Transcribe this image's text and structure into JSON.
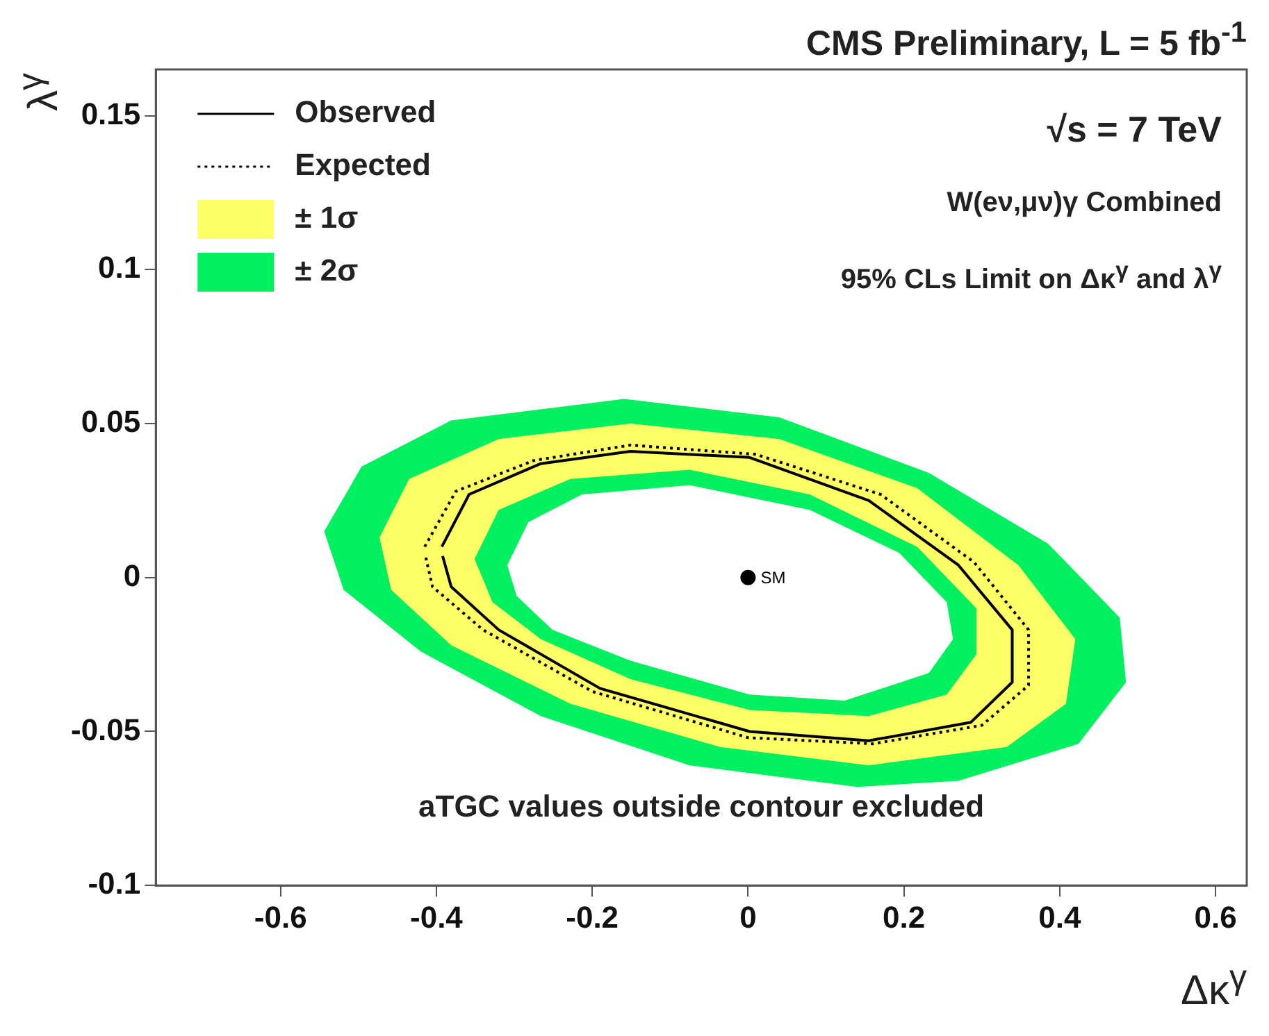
{
  "chart_data": {
    "type": "line",
    "title": "CMS Preliminary, L = 5 fb$^{-1}$",
    "xlabel": "Δκ$^{γ}$",
    "ylabel": "λ$^{γ}$",
    "annotations": [
      "√s = 7 TeV",
      "W(eν,μν)γ Combined",
      "95% CLs Limit on Δκ$^{γ}$ and λ$^{γ}$",
      "aTGC values outside contour excluded"
    ],
    "xlim": [
      -0.76,
      0.64
    ],
    "ylim": [
      -0.1,
      0.165
    ],
    "xticks": [
      -0.6,
      -0.4,
      -0.2,
      0,
      0.2,
      0.4,
      0.6
    ],
    "yticks": [
      -0.1,
      -0.05,
      0,
      0.05,
      0.1,
      0.15
    ],
    "grid": false,
    "legend": "top left",
    "series": [
      {
        "name": "Observed",
        "color": "#000000",
        "line_style": "solid",
        "x": [
          -0.393,
          -0.358,
          -0.266,
          -0.151,
          0.002,
          0.155,
          0.27,
          0.339,
          0.339,
          0.286,
          0.155,
          0.002,
          -0.19,
          -0.32,
          -0.381,
          -0.392
        ],
        "values": [
          0.01,
          0.027,
          0.037,
          0.041,
          0.039,
          0.025,
          0.004,
          -0.017,
          -0.034,
          -0.047,
          -0.053,
          -0.05,
          -0.036,
          -0.017,
          -0.003,
          0.007
        ]
      },
      {
        "name": "Expected",
        "color": "#000000",
        "line_style": "dotted",
        "x": [
          -0.415,
          -0.375,
          -0.275,
          -0.151,
          0.01,
          0.17,
          0.29,
          0.36,
          0.36,
          0.3,
          0.16,
          0,
          -0.2,
          -0.34,
          -0.405,
          -0.414
        ],
        "values": [
          0.01,
          0.028,
          0.038,
          0.043,
          0.04,
          0.027,
          0.005,
          -0.017,
          -0.035,
          -0.048,
          -0.054,
          -0.052,
          -0.037,
          -0.017,
          -0.003,
          0.007
        ]
      },
      {
        "name": "± 1σ",
        "type": "area",
        "color": "#ffff66",
        "x": [
          -0.473,
          -0.435,
          -0.32,
          -0.151,
          0.04,
          0.217,
          0.347,
          0.42,
          0.408,
          0.332,
          0.155,
          -0.036,
          -0.228,
          -0.381,
          -0.458
        ],
        "values": [
          0.013,
          0.032,
          0.045,
          0.05,
          0.045,
          0.029,
          0.004,
          -0.02,
          -0.041,
          -0.055,
          -0.061,
          -0.055,
          -0.041,
          -0.022,
          -0.004
        ]
      },
      {
        "name": "± 2σ",
        "type": "area",
        "color": "#00f060",
        "x": [
          -0.544,
          -0.496,
          -0.381,
          -0.159,
          0.04,
          0.232,
          0.385,
          0.477,
          0.485,
          0.424,
          0.27,
          0.14,
          -0.075,
          -0.266,
          -0.42,
          -0.519
        ],
        "values": [
          0.015,
          0.036,
          0.051,
          0.058,
          0.052,
          0.034,
          0.011,
          -0.013,
          -0.034,
          -0.054,
          -0.066,
          -0.068,
          -0.061,
          -0.045,
          -0.024,
          -0.004
        ]
      },
      {
        "type": "area",
        "color": "#00f060",
        "x": [
          -0.351,
          -0.32,
          -0.228,
          -0.075,
          0.079,
          0.217,
          0.293,
          0.293,
          0.255,
          0.155,
          0.002,
          -0.151,
          -0.266,
          -0.328
        ],
        "values": [
          0.006,
          0.022,
          0.032,
          0.035,
          0.027,
          0.01,
          -0.01,
          -0.025,
          -0.038,
          -0.045,
          -0.043,
          -0.033,
          -0.02,
          -0.008
        ]
      },
      {
        "type": "area",
        "color": "#ffffff",
        "x": [
          -0.309,
          -0.282,
          -0.213,
          -0.075,
          0.079,
          0.194,
          0.255,
          0.263,
          0.232,
          0.124,
          0.002,
          -0.151,
          -0.251,
          -0.297
        ],
        "values": [
          0.004,
          0.018,
          0.027,
          0.03,
          0.022,
          0.008,
          -0.008,
          -0.02,
          -0.031,
          -0.04,
          -0.038,
          -0.027,
          -0.017,
          -0.006
        ]
      },
      {
        "name": "SM",
        "type": "scatter",
        "color": "#000000",
        "marker": "circle",
        "x": [
          0
        ],
        "values": [
          0
        ]
      }
    ]
  }
}
